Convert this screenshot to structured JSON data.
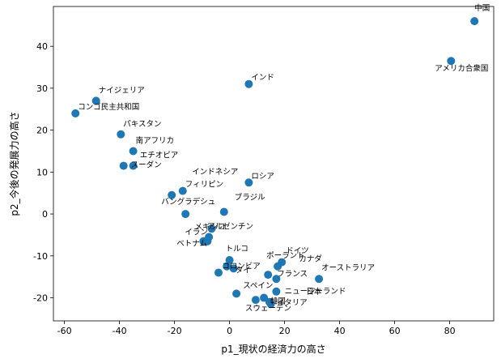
{
  "chart_data": {
    "type": "scatter",
    "title": "",
    "xlabel": "p1_現状の経済力の高さ",
    "ylabel": "p2_今後の発展力の高さ",
    "xlim": [
      -64,
      96
    ],
    "ylim": [
      -25.5,
      49.5
    ],
    "xticks": [
      -60,
      -40,
      -20,
      0,
      20,
      40,
      60,
      80
    ],
    "yticks": [
      -20,
      -10,
      0,
      10,
      20,
      30,
      40
    ],
    "grid": false,
    "marker_color": "#1f77b4",
    "points": [
      {
        "label": "中国",
        "x": 89,
        "y": 46
      },
      {
        "label": "アメリカ合衆国",
        "x": 80.5,
        "y": 36.5
      },
      {
        "label": "インド",
        "x": 7,
        "y": 31
      },
      {
        "label": "ナイジェリア",
        "x": -48.5,
        "y": 27
      },
      {
        "label": "コンゴ民主共和国",
        "x": -56,
        "y": 24
      },
      {
        "label": "パキスタン",
        "x": -39.5,
        "y": 19
      },
      {
        "label": "南アフリカ",
        "x": -35,
        "y": 15
      },
      {
        "label": "エチオピア",
        "x": -38.5,
        "y": 11.5
      },
      {
        "label": "スーダン",
        "x": -35,
        "y": 11.5
      },
      {
        "label": "インドネシア",
        "x": -21,
        "y": 4.5
      },
      {
        "label": "ロシア",
        "x": 7,
        "y": 7.5
      },
      {
        "label": "フィリピン",
        "x": -17,
        "y": 5.5
      },
      {
        "label": "バングラデシュ",
        "x": -16,
        "y": 0
      },
      {
        "label": "ブラジル",
        "x": -2,
        "y": 0.5
      },
      {
        "label": "メキシコ",
        "x": -6.5,
        "y": -3.5
      },
      {
        "label": "ベトナム",
        "x": -9.5,
        "y": -6.5
      },
      {
        "label": "イラン",
        "x": -8,
        "y": -6.5
      },
      {
        "label": "アルゼンチン",
        "x": -7.5,
        "y": -5.5
      },
      {
        "label": "トルコ",
        "x": 0,
        "y": -11
      },
      {
        "label": "コロンビア",
        "x": -1,
        "y": -12.5
      },
      {
        "label": "タイ",
        "x": 1.5,
        "y": -13
      },
      {
        "label": "ドイツ",
        "x": 19,
        "y": -11.5
      },
      {
        "label": "ポーランド",
        "x": 17.5,
        "y": -12.5
      },
      {
        "label": "カナダ",
        "x": 17,
        "y": -15.5
      },
      {
        "label": "フランス",
        "x": 14,
        "y": -14.5
      },
      {
        "label": "オーストラリア",
        "x": 32.5,
        "y": -15.5
      },
      {
        "label": "日本",
        "x": 17,
        "y": -18.5
      },
      {
        "label": "イタリア",
        "x": 12.5,
        "y": -20
      },
      {
        "label": "スペイン",
        "x": 2.5,
        "y": -19
      },
      {
        "label": "韓国",
        "x": 9.5,
        "y": -20.5
      },
      {
        "label": "ニュージーランド",
        "x": 15,
        "y": -21.5
      },
      {
        "label": "スウェーデン",
        "x": 14.5,
        "y": -21
      },
      {
        "label": "",
        "x": -4,
        "y": -14
      }
    ]
  }
}
